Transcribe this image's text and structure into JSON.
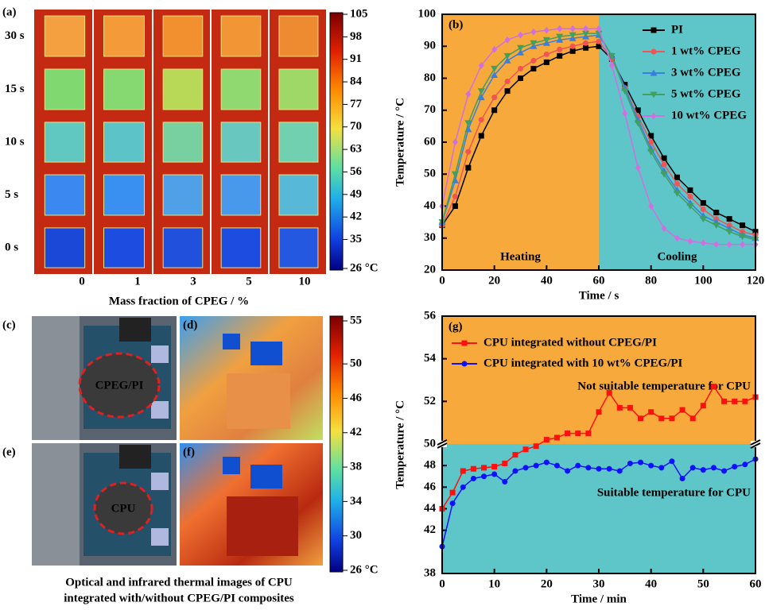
{
  "chart_data": [
    {
      "type": "image",
      "label": "(a)",
      "row_labels": [
        "30 s",
        "15 s",
        "10 s",
        "5 s",
        "0 s"
      ],
      "categories": [
        "0",
        "1",
        "3",
        "5",
        "10"
      ],
      "xlabel": "Mass fraction of CPEG / %",
      "colorbar_ticks": [
        105,
        98,
        91,
        84,
        77,
        70,
        63,
        56,
        49,
        42,
        35,
        {
          "value": 26,
          "label": "26 °C"
        }
      ]
    },
    {
      "type": "line",
      "label": "(b)",
      "xlabel": "Time / s",
      "ylabel": "Temperature / °C",
      "x": [
        0,
        5,
        10,
        15,
        20,
        25,
        30,
        35,
        40,
        45,
        50,
        55,
        60,
        65,
        70,
        75,
        80,
        85,
        90,
        95,
        100,
        105,
        110,
        115,
        120
      ],
      "xlim": [
        0,
        120
      ],
      "xticks": [
        0,
        20,
        40,
        60,
        80,
        100,
        120
      ],
      "ylim": [
        20,
        100
      ],
      "yticks": [
        20,
        30,
        40,
        50,
        60,
        70,
        80,
        90,
        100
      ],
      "legend": "upper right",
      "regions": [
        {
          "text": "Heating",
          "xlim": [
            0,
            60
          ],
          "color": "#f7a93b",
          "text_color": "#e8302a"
        },
        {
          "text": "Cooling",
          "xlim": [
            60,
            120
          ],
          "color": "#5ec6c8",
          "text_color": "#2038d8"
        }
      ],
      "series": [
        {
          "name": "PI",
          "color": "#000000",
          "marker": "square",
          "values": [
            34,
            40,
            52,
            62,
            70,
            76,
            80,
            83,
            85,
            87,
            88.5,
            89.5,
            90,
            86,
            78,
            70,
            62,
            55,
            49,
            45,
            41,
            38,
            36,
            34,
            32
          ]
        },
        {
          "name": "1 wt% CPEG",
          "color": "#f05454",
          "marker": "circle",
          "values": [
            34,
            43,
            57,
            67,
            74,
            79,
            83,
            85.5,
            87.5,
            89,
            90,
            91,
            91.5,
            86,
            77,
            68,
            60,
            53,
            47,
            43,
            39,
            36,
            34,
            32,
            31
          ]
        },
        {
          "name": "3 wt% CPEG",
          "color": "#3a7fe0",
          "marker": "triangle",
          "values": [
            35,
            48,
            64,
            74,
            81,
            85.5,
            88,
            90,
            91,
            92,
            92.5,
            93,
            93.5,
            87,
            77,
            67,
            58,
            51,
            45,
            41,
            37,
            35,
            33,
            31,
            30
          ]
        },
        {
          "name": "5 wt% CPEG",
          "color": "#3fa060",
          "marker": "triangle-down",
          "values": [
            35,
            50,
            66,
            76,
            83,
            87,
            89.5,
            91,
            92,
            93,
            93.5,
            94,
            94,
            87,
            76,
            66,
            57,
            50,
            44,
            40,
            36,
            34,
            32,
            30.5,
            29.5
          ]
        },
        {
          "name": "10 wt% CPEG",
          "color": "#d070e0",
          "marker": "diamond",
          "values": [
            40,
            60,
            75,
            84,
            89,
            92,
            93.5,
            94.5,
            95,
            95.5,
            95.5,
            95.5,
            95.5,
            84,
            69,
            52,
            40,
            33,
            30,
            29,
            28.5,
            28,
            28,
            28,
            28
          ]
        }
      ]
    },
    {
      "type": "image",
      "labels": [
        "(c)",
        "(d)",
        "(e)",
        "(f)"
      ],
      "annotations": [
        "CPEG/PI",
        "CPU"
      ],
      "colorbar_ticks": [
        55,
        50,
        46,
        42,
        38,
        34,
        30,
        {
          "value": 26,
          "label": "26 °C"
        }
      ],
      "caption": [
        "Optical and infrared thermal images of CPU",
        "integrated with/without CPEG/PI composites"
      ]
    },
    {
      "type": "line",
      "label": "(g)",
      "xlabel": "Time / min",
      "ylabel": "Temperature / °C",
      "x": [
        0,
        2,
        4,
        6,
        8,
        10,
        12,
        14,
        16,
        18,
        20,
        22,
        24,
        26,
        28,
        30,
        32,
        34,
        36,
        38,
        40,
        42,
        44,
        46,
        48,
        50,
        52,
        54,
        56,
        58,
        60
      ],
      "xlim": [
        0,
        60
      ],
      "xticks": [
        0,
        10,
        20,
        30,
        40,
        50,
        60
      ],
      "ylim": [
        38,
        56
      ],
      "yticks": [
        38,
        42,
        44,
        46,
        48,
        50,
        52,
        54,
        56
      ],
      "y_break": 50,
      "legend": "upper left",
      "regions": [
        {
          "text": "Not suitable temperature for CPU",
          "ylim": [
            50,
            56
          ],
          "color": "#f7a93b",
          "text_color": "#e8302a"
        },
        {
          "text": "Suitable temperature for CPU",
          "ylim": [
            38,
            50
          ],
          "color": "#5ec6c8",
          "text_color": "#2038d8"
        }
      ],
      "series": [
        {
          "name": "CPU integrated without CPEG/PI",
          "color": "#ff1010",
          "marker": "square",
          "values": [
            44,
            45.5,
            47.5,
            47.7,
            47.8,
            47.9,
            48.2,
            49,
            49.5,
            49.8,
            50.2,
            50.3,
            50.5,
            50.5,
            50.5,
            51.5,
            52.4,
            51.7,
            51.7,
            51.2,
            51.5,
            51.2,
            51.2,
            51.6,
            51.2,
            51.8,
            52.7,
            52,
            52,
            52,
            52.2
          ]
        },
        {
          "name": "CPU integrated with 10 wt% CPEG/PI",
          "color": "#1010ff",
          "marker": "circle",
          "values": [
            40.5,
            44.5,
            46,
            46.8,
            47,
            47.2,
            46.5,
            47.5,
            47.8,
            48,
            48.3,
            48,
            47.5,
            48,
            47.8,
            47.7,
            47.7,
            47.5,
            48.2,
            48.3,
            48,
            47.8,
            48.4,
            46.8,
            47.8,
            47.6,
            47.8,
            47.5,
            47.9,
            48.1,
            48.6
          ]
        }
      ]
    }
  ]
}
